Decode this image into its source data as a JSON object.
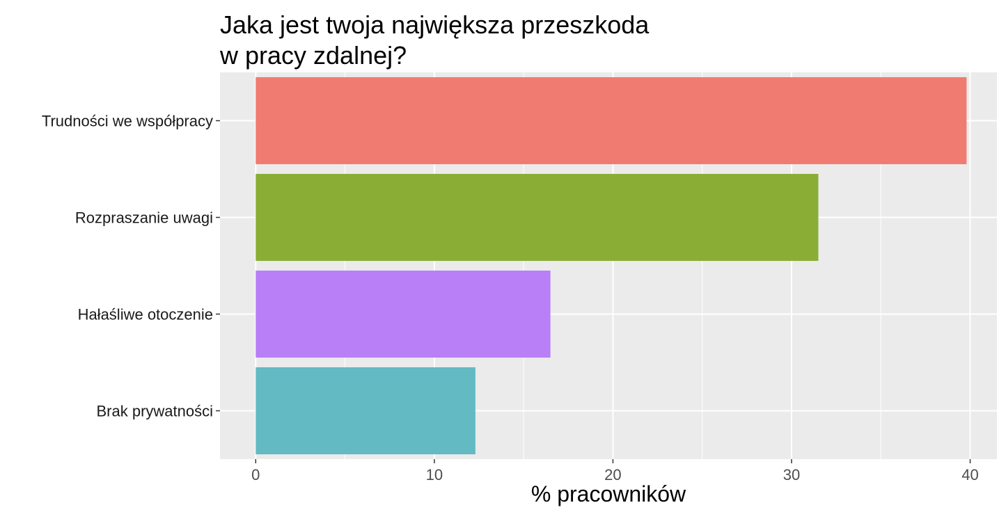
{
  "chart_data": {
    "type": "bar",
    "orientation": "horizontal",
    "title": "Jaka jest twoja największa przeszkoda\nw pracy zdalnej?",
    "xlabel": "% pracowników",
    "ylabel": "",
    "categories": [
      "Trudności we współpracy",
      "Rozpraszanie uwagi",
      "Hałaśliwe otoczenie",
      "Brak prywatności"
    ],
    "values": [
      39.8,
      31.5,
      16.5,
      12.3
    ],
    "colors": [
      "#F07B70",
      "#8AAD36",
      "#B97FF6",
      "#63BAC3"
    ],
    "xlim": [
      -2,
      41.5
    ],
    "xticks": [
      0,
      10,
      20,
      30,
      40
    ],
    "xtick_labels": [
      "0",
      "10",
      "20",
      "30",
      "40"
    ],
    "panel_background": "#EBEBEB",
    "grid": true,
    "legend": "none"
  }
}
